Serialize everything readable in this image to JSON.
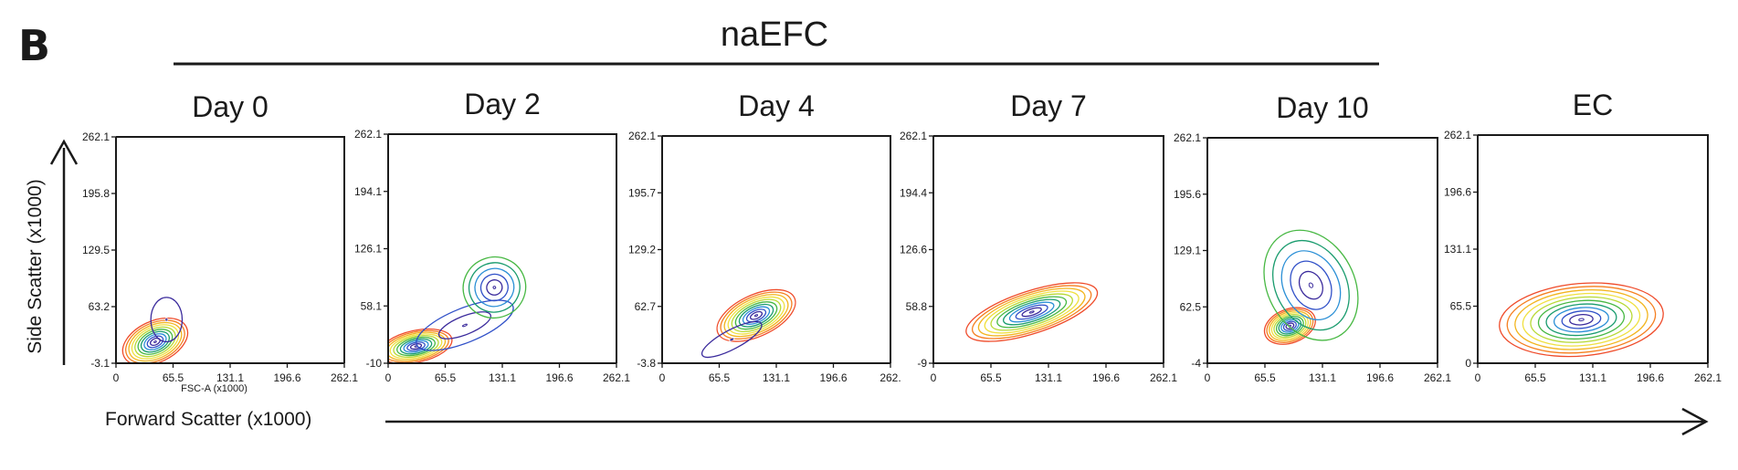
{
  "figure": {
    "panel_letter": "B",
    "group_label": "naEFC",
    "y_axis_label": "Side Scatter (x1000)",
    "x_axis_label": "Forward Scatter (x1000)",
    "contour_colors": [
      "#d62728",
      "#ef4b2a",
      "#f57f20",
      "#f2b51f",
      "#f0e040",
      "#b8d935",
      "#47b843",
      "#1a9c6e",
      "#2a8fd6",
      "#3050c8",
      "#3a2a9c",
      "#ffffff"
    ]
  },
  "chart_data": [
    {
      "type": "contour",
      "title": "Day 0",
      "x_ticks": [
        "0",
        "65.5",
        "131.1",
        "196.6",
        "262.1"
      ],
      "y_ticks": [
        "-3.1",
        "63.2",
        "129.5",
        "195.8",
        "262.1"
      ],
      "x_overlay_label": "FSC-A (x1000)",
      "xlim": [
        0,
        262.1
      ],
      "ylim": [
        -3.1,
        262.1
      ],
      "populations": [
        {
          "cx": 45,
          "cy": 22,
          "sx": 18,
          "sy": 11,
          "rot": 25,
          "levels": 11,
          "spread": 2.2
        },
        {
          "cx": 58,
          "cy": 48,
          "sx": 9,
          "sy": 13,
          "rot": 0,
          "levels": 2,
          "spread": 2.0
        }
      ]
    },
    {
      "type": "contour",
      "title": "Day 2",
      "x_ticks": [
        "0",
        "65.5",
        "131.1",
        "196.6",
        "262.1"
      ],
      "y_ticks": [
        "-10",
        "58.1",
        "126.1",
        "194.1",
        "262.1"
      ],
      "xlim": [
        0,
        262.1
      ],
      "ylim": [
        -10,
        262.1
      ],
      "populations": [
        {
          "cx": 32,
          "cy": 10,
          "sx": 20,
          "sy": 9,
          "rot": 12,
          "levels": 11,
          "spread": 2.1
        },
        {
          "cx": 88,
          "cy": 35,
          "sx": 35,
          "sy": 12,
          "rot": 22,
          "levels": 3,
          "spread": 1.7
        },
        {
          "cx": 122,
          "cy": 80,
          "sx": 18,
          "sy": 18,
          "rot": 20,
          "levels": 6,
          "spread": 2.0
        }
      ]
    },
    {
      "type": "contour",
      "title": "Day 4",
      "x_ticks": [
        "0",
        "65.5",
        "131.1",
        "196.6",
        "262."
      ],
      "y_ticks": [
        "-3.8",
        "62.7",
        "129.2",
        "195.7",
        "262.1"
      ],
      "xlim": [
        0,
        262.1
      ],
      "ylim": [
        -3.8,
        262.1
      ],
      "populations": [
        {
          "cx": 108,
          "cy": 52,
          "sx": 22,
          "sy": 11,
          "rot": 25,
          "levels": 11,
          "spread": 2.2
        },
        {
          "cx": 80,
          "cy": 24,
          "sx": 24,
          "sy": 7,
          "rot": 28,
          "levels": 2,
          "spread": 1.6
        }
      ]
    },
    {
      "type": "contour",
      "title": "Day 7",
      "x_ticks": [
        "0",
        "65.5",
        "131.1",
        "196.6",
        "262.1"
      ],
      "y_ticks": [
        "-9",
        "58.8",
        "126.6",
        "194.4",
        "262.1"
      ],
      "xlim": [
        0,
        262.1
      ],
      "ylim": [
        -9,
        262.1
      ],
      "populations": [
        {
          "cx": 112,
          "cy": 52,
          "sx": 34,
          "sy": 11,
          "rot": 18,
          "levels": 11,
          "spread": 2.3
        }
      ]
    },
    {
      "type": "contour",
      "title": "Day 10",
      "x_ticks": [
        "0",
        "65.5",
        "131.1",
        "196.6",
        "262.1"
      ],
      "y_ticks": [
        "-4",
        "62.5",
        "129.1",
        "195.6",
        "262.1"
      ],
      "xlim": [
        0,
        262.1
      ],
      "ylim": [
        -4,
        262.1
      ],
      "populations": [
        {
          "cx": 94,
          "cy": 40,
          "sx": 15,
          "sy": 10,
          "rot": 20,
          "levels": 11,
          "spread": 2.0
        },
        {
          "cx": 118,
          "cy": 88,
          "sx": 26,
          "sy": 36,
          "rot": 28,
          "levels": 6,
          "spread": 1.9
        }
      ]
    },
    {
      "type": "contour",
      "title": "EC",
      "x_ticks": [
        "0",
        "65.5",
        "131.1",
        "196.6",
        "262.1"
      ],
      "y_ticks": [
        "0",
        "65.5",
        "131.1",
        "196.6",
        "262.1"
      ],
      "xlim": [
        0,
        262.1
      ],
      "ylim": [
        0,
        262.1
      ],
      "populations": [
        {
          "cx": 118,
          "cy": 50,
          "sx": 36,
          "sy": 16,
          "rot": 5,
          "levels": 11,
          "spread": 2.6
        }
      ]
    }
  ]
}
